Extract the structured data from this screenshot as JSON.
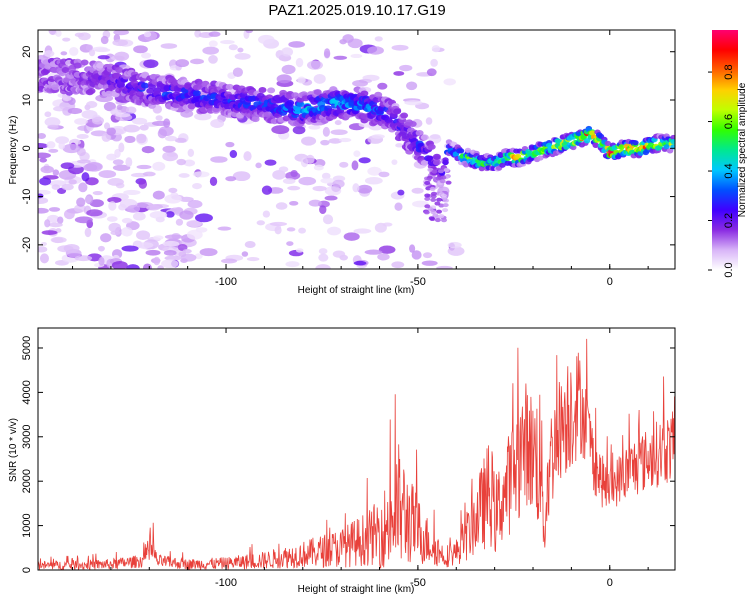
{
  "title": "PAZ1.2025.019.10.17.G19",
  "chart_data": [
    {
      "type": "heatmap",
      "title": "PAZ1.2025.019.10.17.G19",
      "xlabel": "Height of straight line (km)",
      "ylabel": "Frequency (Hz)",
      "xlim": [
        -149,
        17
      ],
      "ylim": [
        -25,
        24.5
      ],
      "x_ticks": [
        -100,
        -50,
        0
      ],
      "y_ticks": [
        -20,
        -10,
        0,
        10,
        20
      ],
      "colorbar": {
        "label": "Normalized spectral amplitude",
        "range": [
          0,
          0.97
        ],
        "ticks": [
          0.0,
          0.2,
          0.4,
          0.6,
          0.8
        ],
        "colors": [
          "#ffffff",
          "#d8b4f8",
          "#8a2be2",
          "#4000ff",
          "#0050ff",
          "#00c8ff",
          "#00e890",
          "#30ff00",
          "#c0ff00",
          "#ffd000",
          "#ff6000",
          "#ff0000",
          "#ff0070"
        ]
      },
      "ridge": {
        "x": [
          -140,
          -130,
          -120,
          -110,
          -100,
          -90,
          -80,
          -70,
          -65,
          -60,
          -56,
          -53,
          -50,
          -47,
          -44,
          -42,
          -40,
          -37,
          -33,
          -30,
          -27,
          -24,
          -20,
          -16,
          -12,
          -8,
          -5,
          -2,
          0,
          4,
          8,
          12,
          17
        ],
        "y": [
          15,
          14,
          12,
          11,
          10,
          9,
          8,
          9.5,
          9,
          8,
          6,
          3,
          1,
          -2,
          -6,
          0,
          -1,
          -2,
          -3,
          -3,
          -2,
          -2,
          -1,
          0,
          1,
          2,
          3,
          1,
          -1,
          0,
          0,
          1,
          1
        ],
        "amp": [
          0.15,
          0.2,
          0.3,
          0.3,
          0.3,
          0.3,
          0.4,
          0.4,
          0.35,
          0.35,
          0.25,
          0.25,
          0.3,
          0.25,
          0.2,
          0.35,
          0.45,
          0.6,
          0.55,
          0.5,
          0.6,
          0.8,
          0.7,
          0.6,
          0.8,
          0.8,
          0.9,
          0.7,
          0.9,
          0.8,
          0.85,
          0.75,
          0.6
        ]
      }
    },
    {
      "type": "line",
      "xlabel": "Height of straight line (km)",
      "ylabel": "SNR (10 * v/v)",
      "xlim": [
        -149,
        17
      ],
      "ylim": [
        0,
        5450
      ],
      "x_ticks": [
        -100,
        -50,
        0
      ],
      "y_ticks": [
        0,
        1000,
        2000,
        3000,
        4000,
        5000
      ],
      "color": "#e8403a",
      "envelope": {
        "x": [
          -149,
          -140,
          -130,
          -122,
          -119,
          -118,
          -110,
          -100,
          -90,
          -80,
          -70,
          -62,
          -58,
          -55,
          -52,
          -48,
          -43,
          -40,
          -37,
          -34,
          -31,
          -30,
          -28,
          -25,
          -22,
          -20,
          -18,
          -17,
          -16,
          -14,
          -12,
          -10,
          -8,
          -6,
          -4,
          -2,
          0,
          3,
          6,
          10,
          14,
          17
        ],
        "mean": [
          100,
          110,
          130,
          200,
          450,
          200,
          130,
          150,
          220,
          350,
          500,
          750,
          1000,
          1400,
          1100,
          700,
          300,
          400,
          800,
          1300,
          1800,
          1200,
          1600,
          2200,
          2900,
          2600,
          2500,
          800,
          2200,
          3000,
          3400,
          3700,
          3800,
          3300,
          2400,
          2000,
          1800,
          2100,
          2300,
          2500,
          2700,
          2800
        ],
        "spread": [
          100,
          110,
          120,
          150,
          300,
          150,
          120,
          140,
          200,
          300,
          450,
          650,
          1000,
          1500,
          1000,
          600,
          250,
          300,
          600,
          900,
          1300,
          900,
          1000,
          1300,
          1400,
          1400,
          1800,
          500,
          1300,
          1100,
          1300,
          1500,
          1200,
          900,
          700,
          600,
          500,
          600,
          700,
          700,
          800,
          800
        ]
      }
    }
  ]
}
